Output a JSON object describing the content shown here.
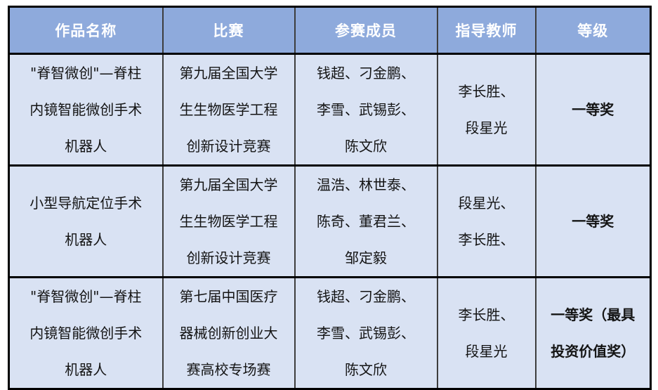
{
  "colors": {
    "header_bg": "#8EAADC",
    "body_bg": "#D9E2F3",
    "header_text": "#FFFFFF",
    "body_text": "#141414",
    "border": "#000000"
  },
  "table": {
    "columns": [
      "作品名称",
      "比赛",
      "参赛成员",
      "指导教师",
      "等级"
    ],
    "rows": [
      {
        "work": [
          "\"脊智微创\"—脊柱",
          "内镜智能微创手术",
          "机器人"
        ],
        "competition": [
          "第九届全国大学",
          "生生物医学工程",
          "创新设计竞赛"
        ],
        "members": [
          "钱超、刁金鹏、",
          "李雪、武锡彭、",
          "陈文欣"
        ],
        "advisors": [
          "李长胜、",
          "段星光"
        ],
        "award": [
          "一等奖"
        ]
      },
      {
        "work": [
          "小型导航定位手术",
          "机器人"
        ],
        "competition": [
          "第九届全国大学",
          "生生物医学工程",
          "创新设计竞赛"
        ],
        "members": [
          "温浩、林世泰、",
          "陈奇、董君兰、",
          "邹定毅"
        ],
        "advisors": [
          "段星光、",
          "李长胜、"
        ],
        "award": [
          "一等奖"
        ]
      },
      {
        "work": [
          "\"脊智微创\"—脊柱",
          "内镜智能微创手术",
          "机器人"
        ],
        "competition": [
          "第七届中国医疗",
          "器械创新创业大",
          "赛高校专场赛"
        ],
        "members": [
          "钱超、刁金鹏、",
          "李雪、武锡彭、",
          "陈文欣"
        ],
        "advisors": [
          "李长胜、",
          "段星光"
        ],
        "award": [
          "一等奖（最具",
          "投资价值奖）"
        ]
      }
    ]
  }
}
